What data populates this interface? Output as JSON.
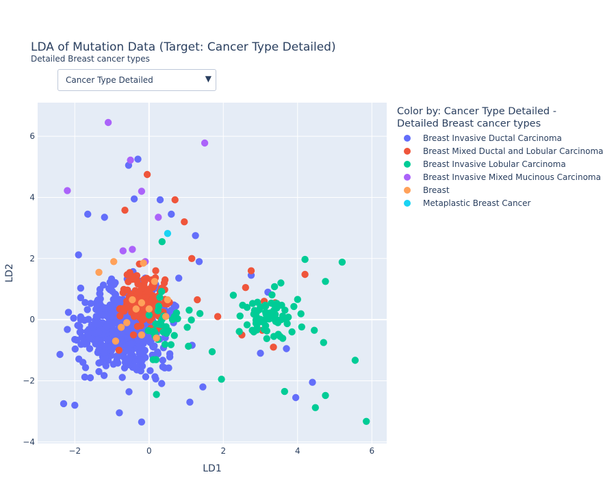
{
  "header": {
    "title": "LDA of Mutation Data (Target: Cancer Type Detailed)",
    "subtitle": "Detailed Breast cancer types"
  },
  "dropdown": {
    "selected": "Cancer Type Detailed",
    "arrow_icon": "triangle-down-icon"
  },
  "legend": {
    "title_line1": "Color by: Cancer Type Detailed -",
    "title_line2": "Detailed Breast cancer types"
  },
  "chart_data": {
    "type": "scatter",
    "title": "LDA of Mutation Data (Target: Cancer Type Detailed)",
    "xlabel": "LD1",
    "ylabel": "LD2",
    "xlim": [
      -3,
      6.4
    ],
    "ylim": [
      -4.05,
      7.1
    ],
    "x_ticks": [
      -2,
      0,
      2,
      4,
      6
    ],
    "y_ticks": [
      -4,
      -2,
      0,
      2,
      4,
      6
    ],
    "grid": true,
    "legend_position": "right",
    "series": [
      {
        "name": "Breast Invasive Ductal Carcinoma",
        "color": "#636efa",
        "points": []
      },
      {
        "name": "Breast Mixed Ductal and Lobular Carcinoma",
        "color": "#ef553b",
        "points": []
      },
      {
        "name": "Breast Invasive Lobular Carcinoma",
        "color": "#00cc96",
        "points": []
      },
      {
        "name": "Breast Invasive Mixed Mucinous Carcinoma",
        "color": "#ab63fa",
        "points": [
          [
            -1.1,
            6.45
          ],
          [
            1.5,
            5.78
          ],
          [
            -0.5,
            5.22
          ],
          [
            -2.2,
            4.22
          ],
          [
            -0.2,
            4.2
          ],
          [
            0.25,
            3.35
          ],
          [
            -0.45,
            2.3
          ],
          [
            -0.7,
            2.25
          ],
          [
            -0.1,
            1.9
          ]
        ]
      },
      {
        "name": "Breast",
        "color": "#ffa15a",
        "points": []
      },
      {
        "name": "Metaplastic Breast Cancer",
        "color": "#19d3f3",
        "points": [
          [
            0.5,
            2.82
          ]
        ]
      }
    ]
  }
}
